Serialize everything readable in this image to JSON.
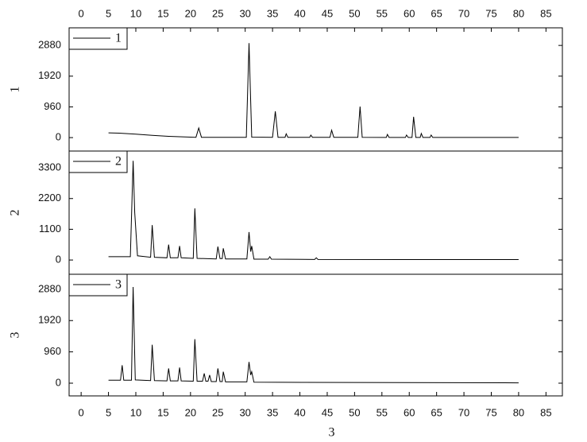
{
  "chart_data": [
    {
      "type": "line",
      "ylabel": "1",
      "xlim": [
        -2.2,
        88
      ],
      "xticks": [
        0,
        5,
        10,
        15,
        20,
        25,
        30,
        35,
        40,
        45,
        50,
        55,
        60,
        65,
        70,
        75,
        80,
        85
      ],
      "xticks_side": "top",
      "ylim": [
        -420,
        3430
      ],
      "yticks": [
        0,
        960,
        1920,
        2880
      ],
      "x": [
        5,
        7,
        10,
        13,
        16,
        19,
        21,
        21.5,
        22,
        30.2,
        30.7,
        31.2,
        35,
        35.5,
        36,
        37.3,
        37.5,
        37.8,
        41.8,
        42,
        42.3,
        45.5,
        45.8,
        46.2,
        50.6,
        51,
        51.4,
        55.8,
        56,
        56.3,
        59.3,
        59.5,
        59.8,
        60.5,
        60.8,
        61.2,
        62,
        62.2,
        62.5,
        63.8,
        64,
        64.3,
        80
      ],
      "series": [
        {
          "name": "1",
          "color": "#000000",
          "values": [
            150,
            140,
            110,
            70,
            40,
            20,
            10,
            300,
            10,
            10,
            2950,
            15,
            10,
            820,
            10,
            10,
            120,
            10,
            10,
            80,
            10,
            10,
            230,
            10,
            10,
            970,
            10,
            5,
            100,
            5,
            5,
            80,
            5,
            5,
            650,
            5,
            5,
            130,
            5,
            5,
            80,
            5,
            5
          ]
        }
      ]
    },
    {
      "type": "line",
      "ylabel": "2",
      "xlim": [
        -2.2,
        88
      ],
      "ylim": [
        -510,
        3900
      ],
      "yticks": [
        0,
        1100,
        2200,
        3300
      ],
      "x": [
        5,
        9,
        9.5,
        9.8,
        10.3,
        12.7,
        13,
        13.4,
        15.7,
        16,
        16.3,
        17.7,
        18,
        18.3,
        20.5,
        20.8,
        21.2,
        24.7,
        25,
        25.4,
        25.8,
        26,
        26.4,
        30.3,
        30.7,
        31,
        31.2,
        31.6,
        34.2,
        34.5,
        34.8,
        42.7,
        43,
        43.3,
        80
      ],
      "series": [
        {
          "name": "2",
          "color": "#000000",
          "values": [
            120,
            120,
            3550,
            1700,
            150,
            100,
            1250,
            100,
            80,
            550,
            80,
            80,
            500,
            80,
            60,
            1850,
            60,
            40,
            480,
            50,
            50,
            420,
            40,
            40,
            1000,
            300,
            500,
            30,
            30,
            120,
            30,
            20,
            80,
            20,
            15
          ]
        }
      ]
    },
    {
      "type": "line",
      "ylabel": "3",
      "xlabel": "3",
      "xlim": [
        -2.2,
        88
      ],
      "xticks": [
        0,
        5,
        10,
        15,
        20,
        25,
        30,
        35,
        40,
        45,
        50,
        55,
        60,
        65,
        70,
        75,
        80,
        85
      ],
      "xticks_side": "bottom",
      "ylim": [
        -390,
        3340
      ],
      "yticks": [
        0,
        960,
        1920,
        2880
      ],
      "x": [
        5,
        7.2,
        7.5,
        7.8,
        9.2,
        9.5,
        9.9,
        12.7,
        13,
        13.4,
        15.7,
        16,
        16.3,
        17.7,
        18,
        18.3,
        20.5,
        20.8,
        21.2,
        22.2,
        22.5,
        22.8,
        23.2,
        23.5,
        23.8,
        24.7,
        25,
        25.4,
        25.8,
        26,
        26.4,
        30.3,
        30.7,
        31,
        31.2,
        31.6,
        80
      ],
      "series": [
        {
          "name": "3",
          "color": "#000000",
          "values": [
            90,
            90,
            550,
            90,
            90,
            2950,
            100,
            80,
            1180,
            80,
            70,
            450,
            70,
            70,
            480,
            70,
            60,
            1350,
            60,
            60,
            300,
            60,
            60,
            250,
            50,
            50,
            450,
            50,
            50,
            350,
            40,
            40,
            650,
            250,
            350,
            30,
            10
          ]
        }
      ]
    }
  ]
}
